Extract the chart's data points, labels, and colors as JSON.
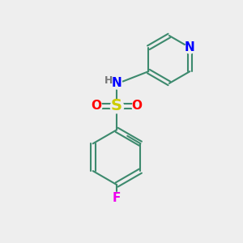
{
  "bg_color": "#eeeeee",
  "bond_color": "#3d8a6e",
  "bond_width": 1.5,
  "N_color": "#0000ff",
  "S_color": "#cccc00",
  "O_color": "#ff0000",
  "F_color": "#ee00ee",
  "H_color": "#777777",
  "figsize": [
    3.0,
    3.0
  ],
  "dpi": 100,
  "xlim": [
    0,
    10
  ],
  "ylim": [
    0,
    10
  ]
}
